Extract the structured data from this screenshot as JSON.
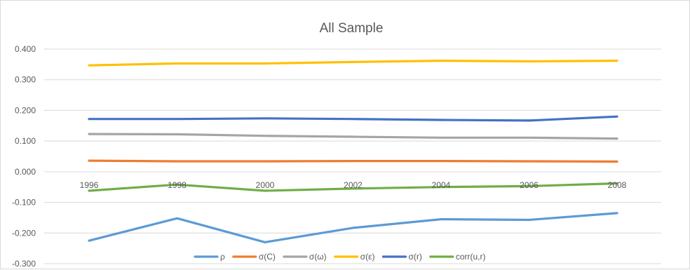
{
  "chart_data": {
    "type": "line",
    "title": "All Sample",
    "xlabel": "",
    "ylabel": "",
    "categories": [
      "1996",
      "1998",
      "2000",
      "2002",
      "2004",
      "2006",
      "2008"
    ],
    "ylim": [
      -0.3,
      0.4
    ],
    "yticks": [
      "0.400",
      "0.300",
      "0.200",
      "0.100",
      "0.000",
      "-0.100",
      "-0.200",
      "-0.300"
    ],
    "ytick_values": [
      0.4,
      0.3,
      0.2,
      0.1,
      0.0,
      -0.1,
      -0.2,
      -0.3
    ],
    "grid": true,
    "legend_position": "bottom",
    "series": [
      {
        "name": "ρ",
        "color": "#5b9bd5",
        "values": [
          -0.225,
          -0.152,
          -0.23,
          -0.183,
          -0.155,
          -0.157,
          -0.135
        ]
      },
      {
        "name": "σ(C)",
        "color": "#ed7d31",
        "values": [
          0.036,
          0.034,
          0.034,
          0.035,
          0.035,
          0.034,
          0.033
        ]
      },
      {
        "name": "σ(ω)",
        "color": "#a5a5a5",
        "values": [
          0.123,
          0.122,
          0.117,
          0.114,
          0.111,
          0.111,
          0.108
        ]
      },
      {
        "name": "σ(ε)",
        "color": "#ffc000",
        "values": [
          0.347,
          0.353,
          0.353,
          0.358,
          0.362,
          0.36,
          0.362
        ]
      },
      {
        "name": "σ(r)",
        "color": "#4472c4",
        "values": [
          0.172,
          0.172,
          0.174,
          0.172,
          0.169,
          0.167,
          0.18
        ]
      },
      {
        "name": "corr(u,r)",
        "color": "#70ad47",
        "values": [
          -0.062,
          -0.042,
          -0.062,
          -0.055,
          -0.05,
          -0.047,
          -0.038
        ]
      }
    ]
  }
}
